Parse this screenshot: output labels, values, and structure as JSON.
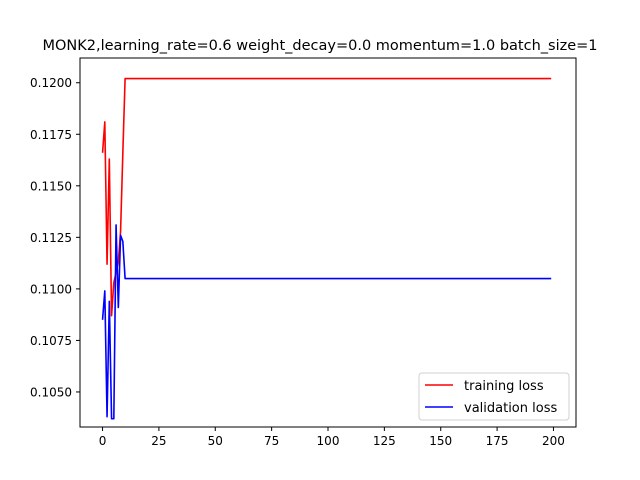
{
  "chart_data": {
    "type": "line",
    "title": "MONK2,learning_rate=0.6  weight_decay=0.0  momentum=1.0  batch_size=1",
    "xlabel": "",
    "ylabel": "",
    "xlim": [
      -10,
      210
    ],
    "ylim": [
      0.1033,
      0.1212
    ],
    "xticks": [
      0,
      25,
      50,
      75,
      100,
      125,
      150,
      175,
      200
    ],
    "xtick_labels": [
      "0",
      "25",
      "50",
      "75",
      "100",
      "125",
      "150",
      "175",
      "200"
    ],
    "yticks": [
      0.105,
      0.1075,
      0.11,
      0.1125,
      0.115,
      0.1175,
      0.12
    ],
    "ytick_labels": [
      "0.1050",
      "0.1075",
      "0.1100",
      "0.1125",
      "0.1150",
      "0.1175",
      "0.1200"
    ],
    "grid": false,
    "legend_position": "lower right",
    "series": [
      {
        "name": "training loss",
        "color": "#ff0000",
        "x": [
          0,
          1,
          2,
          3,
          4,
          5,
          6,
          7,
          8,
          9,
          10,
          11,
          199
        ],
        "y": [
          0.1166,
          0.1181,
          0.1112,
          0.1163,
          0.1087,
          0.1103,
          0.1108,
          0.1113,
          0.1128,
          0.1166,
          0.1202,
          0.1202,
          0.1202
        ]
      },
      {
        "name": "validation loss",
        "color": "#0000ff",
        "x": [
          0,
          1,
          2,
          3,
          4,
          5,
          6,
          7,
          8,
          9,
          10,
          11,
          199
        ],
        "y": [
          0.1085,
          0.1099,
          0.1038,
          0.1094,
          0.1037,
          0.1037,
          0.1131,
          0.1091,
          0.1126,
          0.1123,
          0.1105,
          0.1105,
          0.1105
        ]
      }
    ]
  }
}
